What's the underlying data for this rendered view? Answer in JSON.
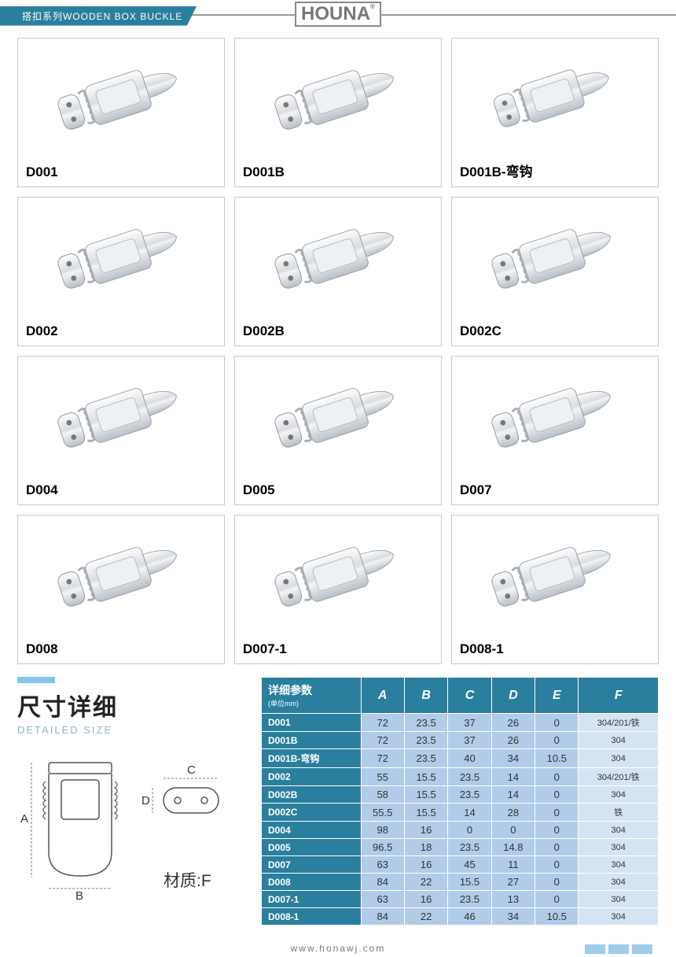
{
  "header": {
    "category": "搭扣系列WOODEN BOX BUCKLE",
    "logo": "HOUNA"
  },
  "products": [
    {
      "code": "D001"
    },
    {
      "code": "D001B"
    },
    {
      "code": "D001B-弯钩"
    },
    {
      "code": "D002"
    },
    {
      "code": "D002B"
    },
    {
      "code": "D002C"
    },
    {
      "code": "D004"
    },
    {
      "code": "D005"
    },
    {
      "code": "D007"
    },
    {
      "code": "D008"
    },
    {
      "code": "D007-1"
    },
    {
      "code": "D008-1"
    }
  ],
  "size_section": {
    "title_cn": "尺寸详细",
    "title_en": "DETAILED SIZE",
    "material_label": "材质:F",
    "dim_labels": [
      "A",
      "B",
      "C",
      "D"
    ]
  },
  "spec_table": {
    "header_title": "详细参数",
    "header_unit": "(单位mm)",
    "columns": [
      "A",
      "B",
      "C",
      "D",
      "E",
      "F"
    ],
    "rows": [
      {
        "code": "D001",
        "v": [
          "72",
          "23.5",
          "37",
          "26",
          "0",
          "304/201/铁"
        ]
      },
      {
        "code": "D001B",
        "v": [
          "72",
          "23.5",
          "37",
          "26",
          "0",
          "304"
        ]
      },
      {
        "code": "D001B-弯钩",
        "v": [
          "72",
          "23.5",
          "40",
          "34",
          "10.5",
          "304"
        ]
      },
      {
        "code": "D002",
        "v": [
          "55",
          "15.5",
          "23.5",
          "14",
          "0",
          "304/201/铁"
        ]
      },
      {
        "code": "D002B",
        "v": [
          "58",
          "15.5",
          "23.5",
          "14",
          "0",
          "304"
        ]
      },
      {
        "code": "D002C",
        "v": [
          "55.5",
          "15.5",
          "14",
          "28",
          "0",
          "铁"
        ]
      },
      {
        "code": "D004",
        "v": [
          "98",
          "16",
          "0",
          "0",
          "0",
          "304"
        ]
      },
      {
        "code": "D005",
        "v": [
          "96.5",
          "18",
          "23.5",
          "14.8",
          "0",
          "304"
        ]
      },
      {
        "code": "D007",
        "v": [
          "63",
          "16",
          "45",
          "11",
          "0",
          "304"
        ]
      },
      {
        "code": "D008",
        "v": [
          "84",
          "22",
          "15.5",
          "27",
          "0",
          "304"
        ]
      },
      {
        "code": "D007-1",
        "v": [
          "63",
          "16",
          "23.5",
          "13",
          "0",
          "304"
        ]
      },
      {
        "code": "D008-1",
        "v": [
          "84",
          "22",
          "46",
          "34",
          "10.5",
          "304"
        ]
      }
    ]
  },
  "footer": {
    "url": "www.honawj.com"
  },
  "colors": {
    "brand_blue": "#2a7f9e",
    "light_blue": "#86c6ea",
    "cell_blue": "#b0cce8",
    "cell_light": "#d5e4f2",
    "border_gray": "#c8c8c8"
  }
}
